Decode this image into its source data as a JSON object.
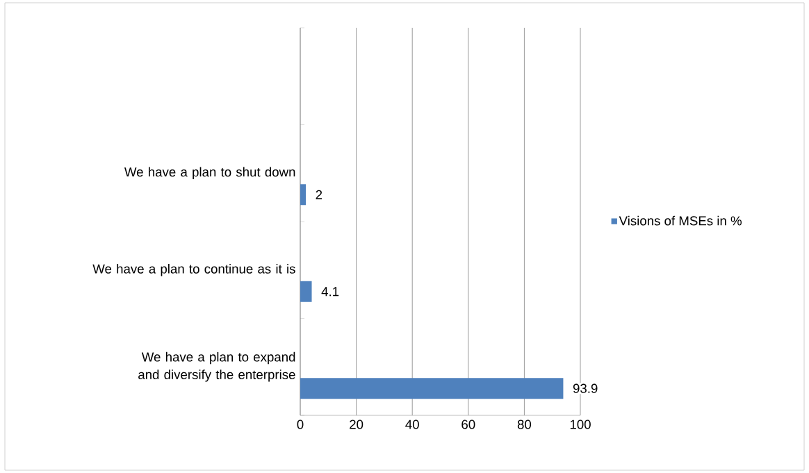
{
  "chart_data": {
    "type": "bar",
    "orientation": "horizontal",
    "categories": [
      null,
      "We have a plan to shut down",
      "We have a plan to continue as it is",
      "We have a plan to expand and diversify the enterprise"
    ],
    "series": [
      {
        "name": "Visions of MSEs in %",
        "color": "#4f81bd",
        "values": [
          null,
          2,
          4.1,
          93.9
        ]
      }
    ],
    "xlim": [
      0,
      100
    ],
    "xticks": [
      0,
      20,
      40,
      60,
      80,
      100
    ],
    "grid": "x",
    "legend": "right",
    "data_labels": true
  }
}
